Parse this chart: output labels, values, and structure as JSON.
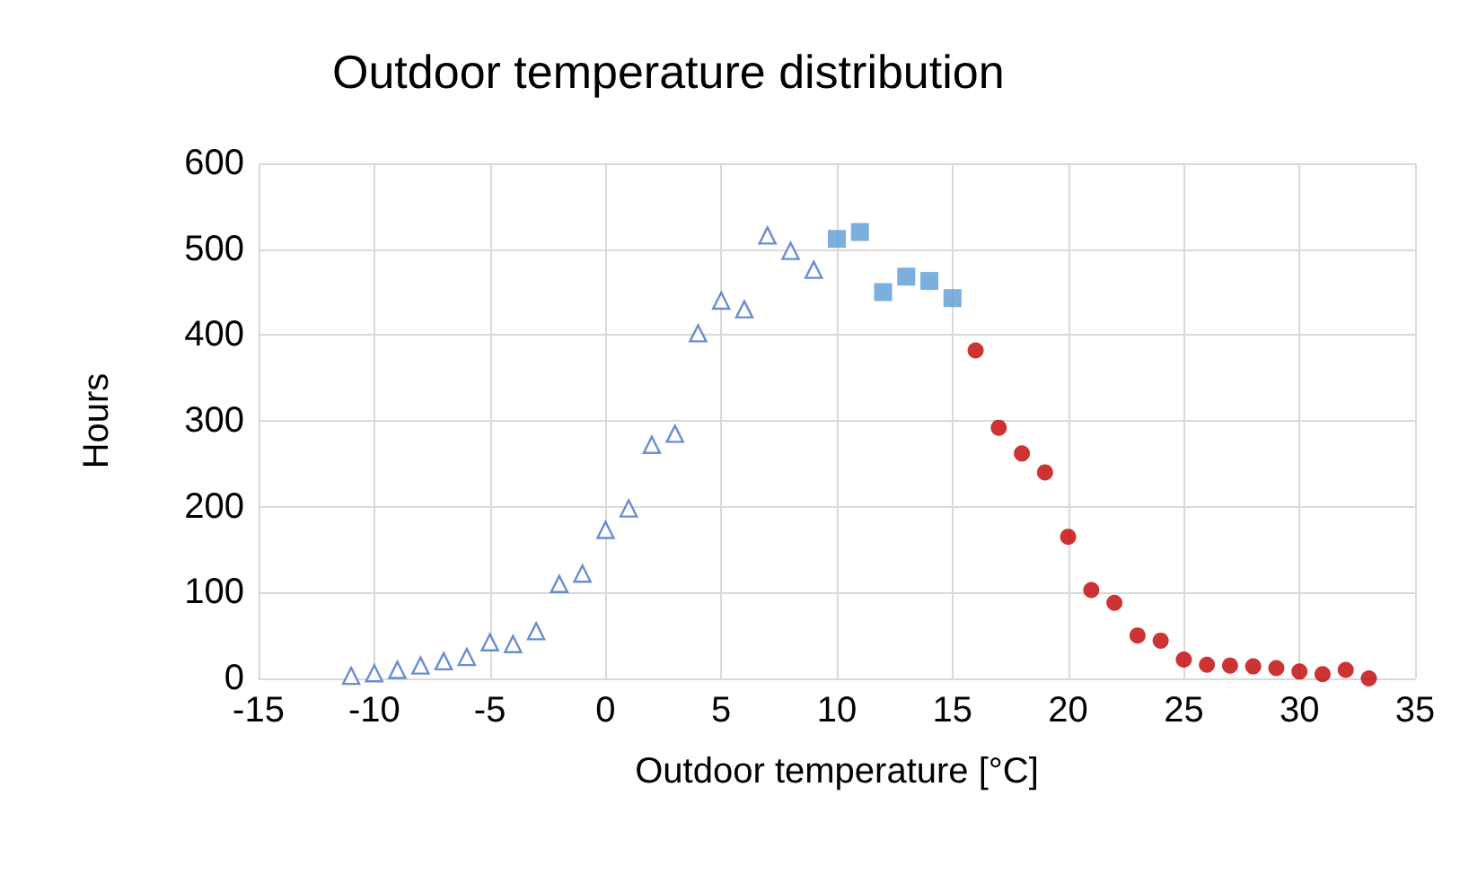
{
  "chart_data": {
    "type": "scatter",
    "title": "Outdoor temperature distribution",
    "xlabel": "Outdoor temperature [°C]",
    "ylabel": "Hours",
    "series": [
      {
        "color": "#4472c4",
        "marker": "triangle",
        "x": [
          -11,
          -10,
          -9,
          -8,
          -7,
          -6,
          -5,
          -4,
          -3,
          -2,
          -1,
          0,
          1,
          2,
          3,
          4,
          5,
          6,
          7,
          8,
          9
        ],
        "values": [
          3,
          6,
          10,
          15,
          20,
          25,
          42,
          40,
          55,
          110,
          122,
          173,
          198,
          272,
          285,
          402,
          440,
          430,
          516,
          498,
          476
        ]
      },
      {
        "color": "#5b9bd5",
        "marker": "square",
        "x": [
          10,
          11,
          12,
          13,
          14,
          15
        ],
        "values": [
          512,
          520,
          450,
          468,
          463,
          443
        ]
      },
      {
        "color": "#c00000",
        "marker": "circle",
        "x": [
          16,
          17,
          18,
          19,
          20,
          21,
          22,
          23,
          24,
          25,
          26,
          27,
          28,
          29,
          30,
          31,
          32,
          33
        ],
        "values": [
          382,
          292,
          262,
          240,
          165,
          103,
          88,
          50,
          44,
          22,
          16,
          15,
          14,
          12,
          8,
          5,
          10,
          0
        ]
      }
    ],
    "xlim": [
      -15,
      35
    ],
    "xticks": [
      -15,
      -10,
      -5,
      0,
      5,
      10,
      15,
      20,
      25,
      30,
      35
    ],
    "ylim": [
      0,
      600
    ],
    "yticks": [
      0,
      100,
      200,
      300,
      400,
      500,
      600
    ],
    "grid": true
  }
}
